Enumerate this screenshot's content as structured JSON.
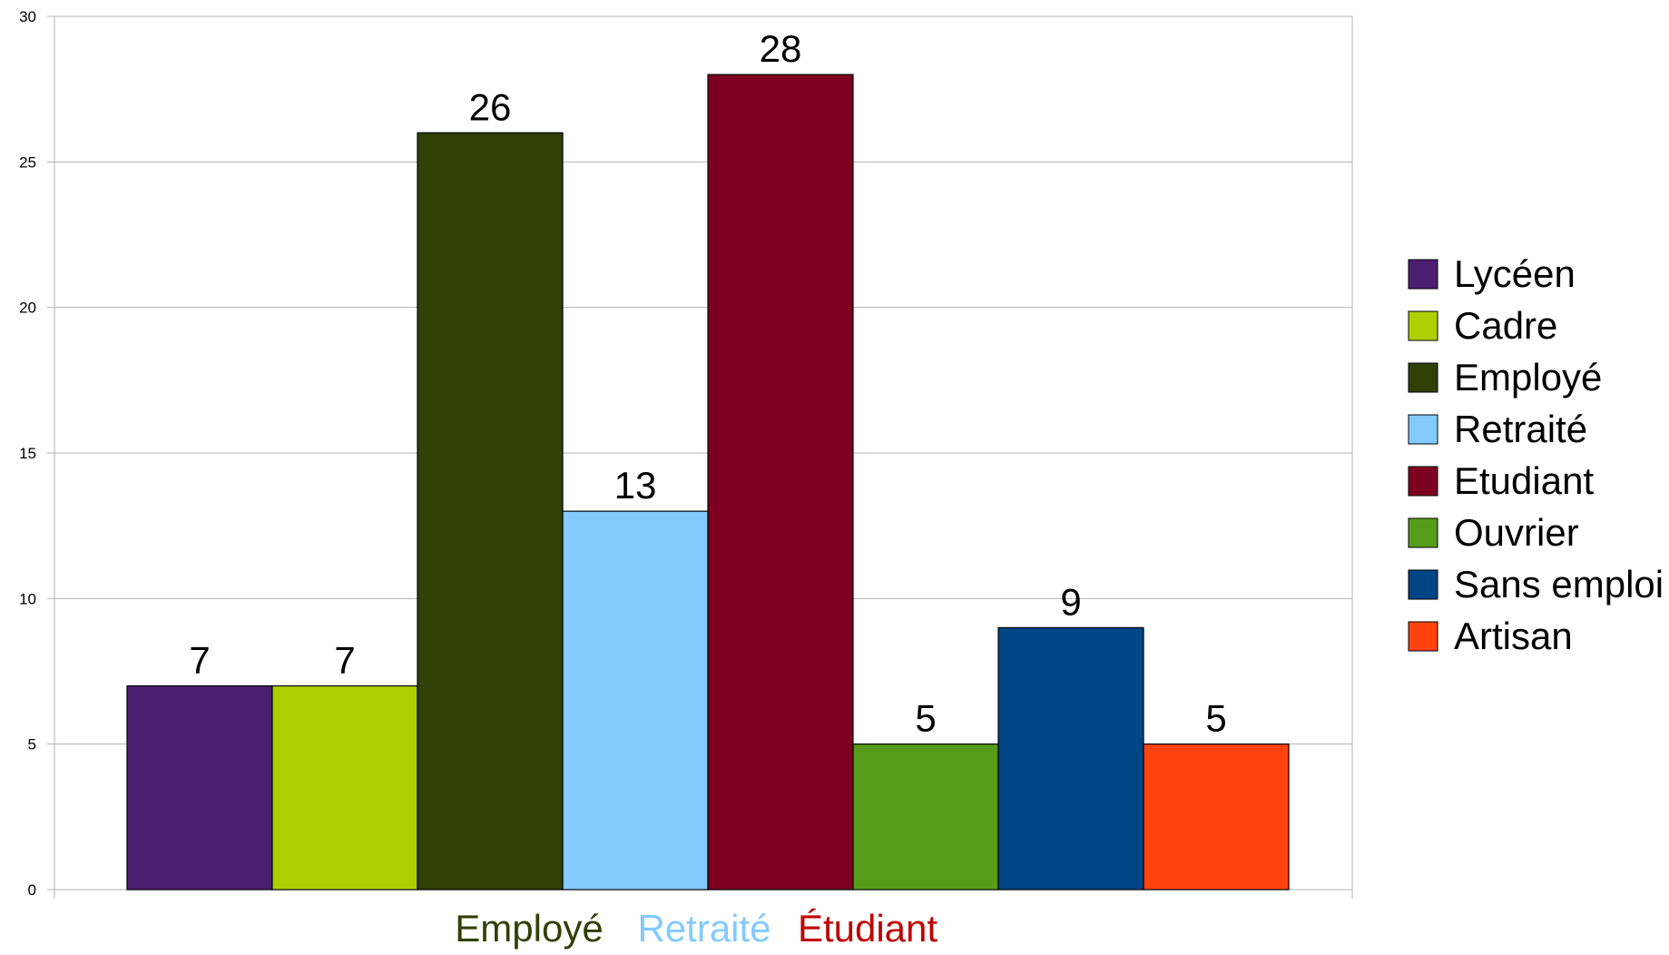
{
  "chart_data": {
    "type": "bar",
    "categories": [
      "Lycéen",
      "Cadre",
      "Employé",
      "Retraité",
      "Etudiant",
      "Ouvrier",
      "Sans emploi",
      "Artisan"
    ],
    "values": [
      7,
      7,
      26,
      13,
      28,
      5,
      9,
      5
    ],
    "colors": [
      "#4b1f6f",
      "#aecf00",
      "#314004",
      "#83caff",
      "#7e0021",
      "#579d1c",
      "#004586",
      "#ff420e"
    ],
    "ylim": [
      0,
      30
    ],
    "yticks": [
      "0",
      "5",
      "10",
      "15",
      "20",
      "25",
      "30"
    ],
    "grid": true,
    "legend_position": "right",
    "data_labels": [
      "7",
      "7",
      "26",
      "13",
      "28",
      "5",
      "9",
      "5"
    ],
    "annotations": [
      {
        "text": "Employé",
        "color": "#314004"
      },
      {
        "text": "Retraité",
        "color": "#83caff"
      },
      {
        "text": "Étudiant",
        "color": "#c00000"
      }
    ]
  }
}
